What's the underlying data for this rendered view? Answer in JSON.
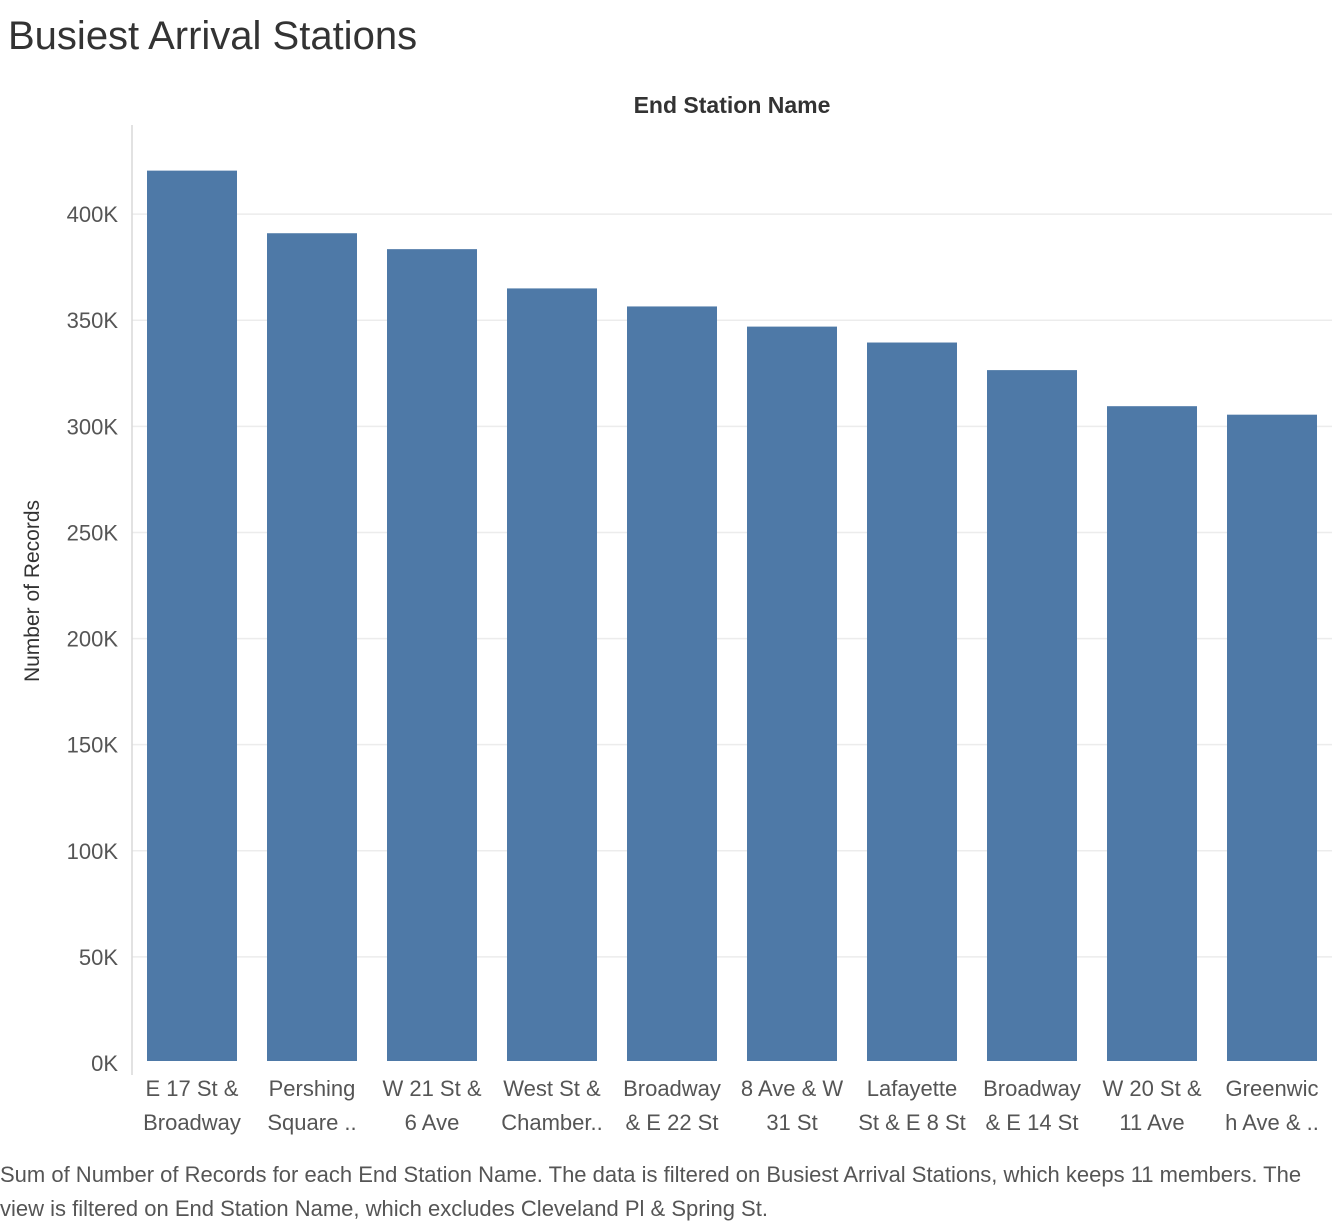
{
  "chart_data": {
    "type": "bar",
    "title": "Busiest Arrival Stations",
    "x_header": "End Station Name",
    "ylabel": "Number of Records",
    "ylim": [
      0,
      420000
    ],
    "yticks": [
      0,
      50000,
      100000,
      150000,
      200000,
      250000,
      300000,
      350000,
      400000
    ],
    "ytick_labels": [
      "0K",
      "50K",
      "100K",
      "150K",
      "200K",
      "250K",
      "300K",
      "350K",
      "400K"
    ],
    "grid": true,
    "bar_color": "#4e79a7",
    "categories": [
      [
        "E 17 St &",
        "Broadway"
      ],
      [
        "Pershing",
        "Square .."
      ],
      [
        "W 21 St &",
        "6 Ave"
      ],
      [
        "West St &",
        "Chamber.."
      ],
      [
        "Broadway",
        "& E 22 St"
      ],
      [
        "8 Ave & W",
        "31 St"
      ],
      [
        "Lafayette",
        "St & E 8 St"
      ],
      [
        "Broadway",
        "& E 14 St"
      ],
      [
        "W 20 St &",
        "11 Ave"
      ],
      [
        "Greenwic",
        "h Ave & .."
      ]
    ],
    "values": [
      420500,
      391000,
      383500,
      365000,
      356500,
      347000,
      339500,
      326500,
      309500,
      305500
    ]
  },
  "caption": "Sum of Number of Records for each End Station Name. The data is filtered on Busiest Arrival Stations, which keeps 11 members. The view is filtered on End Station Name, which excludes Cleveland Pl & Spring St."
}
